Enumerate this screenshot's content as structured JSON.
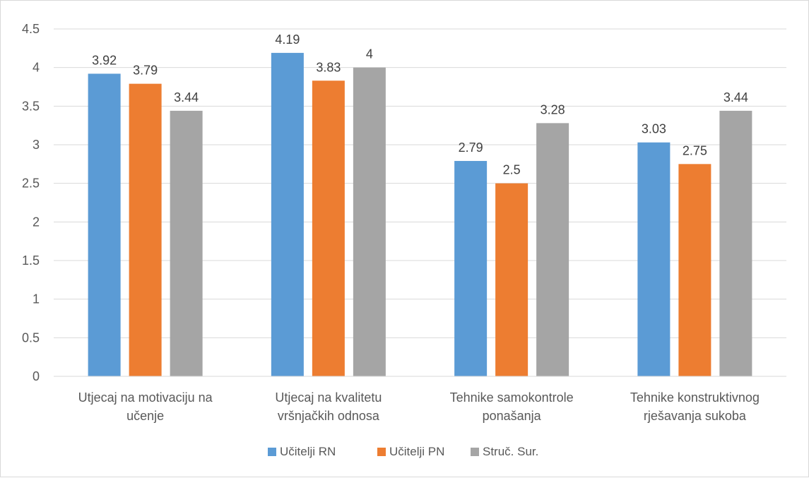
{
  "chart_data": {
    "type": "bar",
    "title": "",
    "xlabel": "",
    "ylabel": "",
    "categories": [
      [
        "Utjecaj na motivaciju na",
        "učenje"
      ],
      [
        "Utjecaj na kvalitetu",
        "vršnjačkih odnosa"
      ],
      [
        "Tehnike samokontrole",
        "ponašanja"
      ],
      [
        "Tehnike konstruktivnog",
        "rješavanja sukoba"
      ]
    ],
    "series": [
      {
        "name": "Učitelji RN",
        "color": "#5b9bd5",
        "values": [
          3.92,
          4.19,
          2.79,
          3.03
        ]
      },
      {
        "name": "Učitelji PN",
        "color": "#ed7d31",
        "values": [
          3.79,
          3.83,
          2.5,
          2.75
        ]
      },
      {
        "name": "Struč. Sur.",
        "color": "#a5a5a5",
        "values": [
          3.44,
          4,
          3.28,
          3.44
        ]
      }
    ],
    "ylim": [
      0,
      4.5
    ],
    "yticks": [
      "0",
      "0.5",
      "1",
      "1.5",
      "2",
      "2.5",
      "3",
      "3.5",
      "4",
      "4.5"
    ],
    "grid": true,
    "legend_position": "bottom"
  }
}
